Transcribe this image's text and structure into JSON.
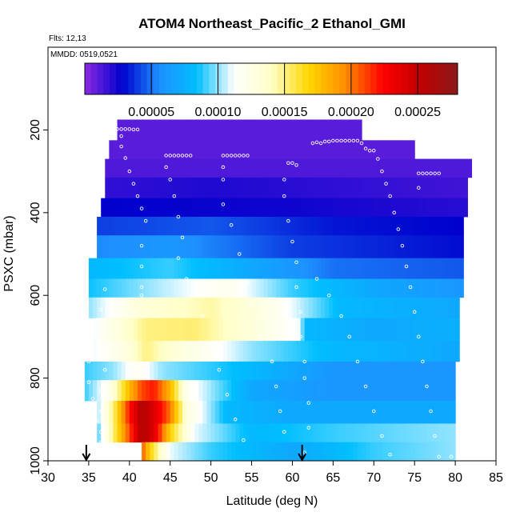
{
  "chart_data": {
    "type": "heatmap",
    "title": "ATOM4 Northeast_Pacific_2 Ethanol_GMI",
    "flights_label": "Flts: 12,13",
    "mmdd_label": "MMDD: 0519,0521",
    "xlabel": "Latitude (deg N)",
    "ylabel": "PSXC (mbar)",
    "xlim": [
      30,
      85
    ],
    "ylim": [
      1000,
      0
    ],
    "x_ticks": [
      30,
      35,
      40,
      45,
      50,
      55,
      60,
      65,
      70,
      75,
      80,
      85
    ],
    "y_ticks": [
      200,
      400,
      600,
      800,
      1000
    ],
    "colorbar": {
      "range": [
        0,
        0.00028
      ],
      "tick_values": [
        5e-05,
        0.0001,
        0.00015,
        0.0002,
        0.00025
      ],
      "tick_labels": [
        "0.00005",
        "0.00010",
        "0.00015",
        "0.00020",
        "0.00025"
      ],
      "colors": [
        "#8a2be2",
        "#0000cd",
        "#1e90ff",
        "#00bfff",
        "#ffffff",
        "#ffffc8",
        "#ffd700",
        "#ff8c00",
        "#ff0000",
        "#c00000",
        "#8b1a1a"
      ]
    },
    "arrows_latitude": [
      34.7,
      61.2
    ],
    "rows": [
      {
        "p_top": 175,
        "p_bot": 225,
        "x0": 38.5,
        "x1": 68.5,
        "stops": [
          [
            38.5,
            1e-05
          ],
          [
            68.5,
            1e-05
          ]
        ]
      },
      {
        "p_top": 225,
        "p_bot": 270,
        "x0": 37.5,
        "x1": 75,
        "stops": [
          [
            37.5,
            1e-05
          ],
          [
            75,
            1e-05
          ]
        ]
      },
      {
        "p_top": 270,
        "p_bot": 315,
        "x0": 37,
        "x1": 82,
        "stops": [
          [
            37,
            1.2e-05
          ],
          [
            82,
            1.2e-05
          ]
        ]
      },
      {
        "p_top": 315,
        "p_bot": 365,
        "x0": 37,
        "x1": 81.5,
        "stops": [
          [
            37,
            1.8e-05
          ],
          [
            50,
            2.2e-05
          ],
          [
            81.5,
            1.5e-05
          ]
        ]
      },
      {
        "p_top": 365,
        "p_bot": 410,
        "x0": 36.5,
        "x1": 81.5,
        "stops": [
          [
            36.5,
            2.8e-05
          ],
          [
            60,
            2.5e-05
          ],
          [
            81.5,
            2e-05
          ]
        ]
      },
      {
        "p_top": 410,
        "p_bot": 455,
        "x0": 36,
        "x1": 81,
        "stops": [
          [
            36,
            4e-05
          ],
          [
            50,
            4.5e-05
          ],
          [
            65,
            3.2e-05
          ],
          [
            81,
            2.8e-05
          ]
        ]
      },
      {
        "p_top": 455,
        "p_bot": 510,
        "x0": 36,
        "x1": 81,
        "stops": [
          [
            36,
            5.5e-05
          ],
          [
            45,
            6e-05
          ],
          [
            60,
            4e-05
          ],
          [
            81,
            3e-05
          ]
        ]
      },
      {
        "p_top": 510,
        "p_bot": 560,
        "x0": 35,
        "x1": 81,
        "stops": [
          [
            35,
            8e-05
          ],
          [
            45,
            9e-05
          ],
          [
            55,
            7e-05
          ],
          [
            65,
            5e-05
          ],
          [
            81,
            4.5e-05
          ]
        ]
      },
      {
        "p_top": 560,
        "p_bot": 605,
        "x0": 35,
        "x1": 81,
        "stops": [
          [
            35,
            8.5e-05
          ],
          [
            42,
            0.0001
          ],
          [
            52,
            0.00012
          ],
          [
            60,
            9e-05
          ],
          [
            70,
            7e-05
          ],
          [
            81,
            6e-05
          ]
        ]
      },
      {
        "p_top": 605,
        "p_bot": 655,
        "x0": 35,
        "x1": 80.5,
        "stops": [
          [
            35,
            0.0001
          ],
          [
            41,
            0.00013
          ],
          [
            50,
            0.000145
          ],
          [
            58,
            0.00012
          ],
          [
            66,
            8e-05
          ],
          [
            80.5,
            7e-05
          ]
        ]
      },
      {
        "p_top": 655,
        "p_bot": 710,
        "x0": 35.5,
        "x1": 80.5,
        "stops": [
          [
            35.5,
            0.00011
          ],
          [
            42,
            0.00015
          ],
          [
            48,
            0.000152
          ],
          [
            55,
            0.00013
          ],
          [
            61,
            0.00011
          ],
          [
            61.5,
            8e-05
          ],
          [
            70,
            7e-05
          ],
          [
            80.5,
            7.5e-05
          ]
        ]
      },
      {
        "p_top": 710,
        "p_bot": 760,
        "x0": 35.5,
        "x1": 80.5,
        "stops": [
          [
            35.5,
            0.00011
          ],
          [
            40,
            0.00013
          ],
          [
            42,
            0.00015
          ],
          [
            46,
            0.00013
          ],
          [
            55,
            0.0001
          ],
          [
            65,
            8e-05
          ],
          [
            80.5,
            7e-05
          ]
        ]
      },
      {
        "p_top": 760,
        "p_bot": 805,
        "x0": 34.5,
        "x1": 80,
        "stops": [
          [
            34.5,
            9e-05
          ],
          [
            38,
            0.0001
          ],
          [
            41,
            0.00012
          ],
          [
            44,
            0.0001
          ],
          [
            55,
            8e-05
          ],
          [
            65,
            6e-05
          ],
          [
            80,
            6e-05
          ]
        ]
      },
      {
        "p_top": 805,
        "p_bot": 855,
        "x0": 34.5,
        "x1": 80,
        "stops": [
          [
            34.5,
            9e-05
          ],
          [
            37.5,
            0.00012
          ],
          [
            40,
            0.00018
          ],
          [
            41.5,
            0.00021
          ],
          [
            43,
            0.00022
          ],
          [
            45,
            0.00018
          ],
          [
            47,
            0.00012
          ],
          [
            55,
            7e-05
          ],
          [
            65,
            6e-05
          ],
          [
            80,
            6e-05
          ]
        ]
      },
      {
        "p_top": 855,
        "p_bot": 910,
        "x0": 36,
        "x1": 80,
        "stops": [
          [
            36,
            0.0001
          ],
          [
            38,
            0.00015
          ],
          [
            40,
            0.00022
          ],
          [
            41.5,
            0.00026
          ],
          [
            43,
            0.00024
          ],
          [
            45,
            0.0002
          ],
          [
            47,
            0.00013
          ],
          [
            52,
            8e-05
          ],
          [
            60,
            7e-05
          ],
          [
            80,
            7e-05
          ]
        ]
      },
      {
        "p_top": 910,
        "p_bot": 955,
        "x0": 36,
        "x1": 80,
        "stops": [
          [
            36,
            9e-05
          ],
          [
            38,
            0.00015
          ],
          [
            40,
            0.00021
          ],
          [
            41.5,
            0.00026
          ],
          [
            43,
            0.00024
          ],
          [
            45,
            0.00017
          ],
          [
            48,
            0.00011
          ],
          [
            55,
            8e-05
          ],
          [
            65,
            9e-05
          ],
          [
            80,
            0.0001
          ]
        ]
      },
      {
        "p_top": 955,
        "p_bot": 1000,
        "x0": 41.5,
        "x1": 80,
        "stops": [
          [
            41.5,
            0.00021
          ],
          [
            42.5,
            0.00017
          ],
          [
            45,
            0.00011
          ],
          [
            50,
            9e-05
          ],
          [
            60,
            7e-05
          ],
          [
            70,
            9e-05
          ],
          [
            80,
            0.0001
          ]
        ]
      }
    ],
    "points": [
      [
        38.5,
        198
      ],
      [
        39,
        198
      ],
      [
        39.5,
        198
      ],
      [
        40,
        198
      ],
      [
        40.5,
        199
      ],
      [
        41,
        199
      ],
      [
        39,
        215
      ],
      [
        39,
        240
      ],
      [
        39.5,
        268
      ],
      [
        40,
        300
      ],
      [
        40.5,
        330
      ],
      [
        41,
        360
      ],
      [
        41.5,
        390
      ],
      [
        42,
        420
      ],
      [
        41.5,
        480
      ],
      [
        41.5,
        530
      ],
      [
        41.5,
        580
      ],
      [
        41.5,
        600
      ],
      [
        40.5,
        640
      ],
      [
        38.5,
        680
      ],
      [
        37.5,
        730
      ],
      [
        37,
        780
      ],
      [
        36.5,
        830
      ],
      [
        36.5,
        880
      ],
      [
        36.5,
        930
      ],
      [
        36.5,
        955
      ],
      [
        44.5,
        262
      ],
      [
        45,
        262
      ],
      [
        45.5,
        262
      ],
      [
        46,
        262
      ],
      [
        46.5,
        262
      ],
      [
        47,
        262
      ],
      [
        47.5,
        262
      ],
      [
        44.5,
        290
      ],
      [
        45,
        320
      ],
      [
        45.5,
        360
      ],
      [
        46,
        410
      ],
      [
        46.5,
        460
      ],
      [
        46,
        510
      ],
      [
        47,
        560
      ],
      [
        51.5,
        262
      ],
      [
        52,
        262
      ],
      [
        52.5,
        262
      ],
      [
        53,
        262
      ],
      [
        53.5,
        262
      ],
      [
        54,
        262
      ],
      [
        54.5,
        262
      ],
      [
        51.5,
        290
      ],
      [
        51.5,
        320
      ],
      [
        51.5,
        380
      ],
      [
        52.5,
        430
      ],
      [
        53.5,
        500
      ],
      [
        54.5,
        570
      ],
      [
        55,
        620
      ],
      [
        56,
        700
      ],
      [
        57.5,
        760
      ],
      [
        58,
        820
      ],
      [
        58.5,
        880
      ],
      [
        59,
        930
      ],
      [
        59.5,
        280
      ],
      [
        60,
        280
      ],
      [
        60.5,
        285
      ],
      [
        59,
        320
      ],
      [
        59,
        360
      ],
      [
        59.5,
        420
      ],
      [
        60,
        470
      ],
      [
        60.5,
        520
      ],
      [
        60.5,
        580
      ],
      [
        61,
        640
      ],
      [
        61,
        700
      ],
      [
        61.5,
        760
      ],
      [
        61.5,
        800
      ],
      [
        62,
        860
      ],
      [
        62,
        920
      ],
      [
        61.5,
        980
      ],
      [
        62.5,
        232
      ],
      [
        63,
        230
      ],
      [
        63.5,
        232
      ],
      [
        64,
        228
      ],
      [
        64.5,
        228
      ],
      [
        65,
        226
      ],
      [
        65.5,
        226
      ],
      [
        66,
        226
      ],
      [
        66.5,
        226
      ],
      [
        67,
        226
      ],
      [
        67.5,
        226
      ],
      [
        68,
        226
      ],
      [
        68.5,
        232
      ],
      [
        69,
        245
      ],
      [
        69.5,
        250
      ],
      [
        70,
        250
      ],
      [
        70.5,
        270
      ],
      [
        71,
        300
      ],
      [
        71.5,
        330
      ],
      [
        72,
        360
      ],
      [
        72.5,
        400
      ],
      [
        73,
        440
      ],
      [
        73.5,
        480
      ],
      [
        74,
        530
      ],
      [
        74.5,
        580
      ],
      [
        75,
        640
      ],
      [
        75.5,
        700
      ],
      [
        76,
        760
      ],
      [
        76.5,
        820
      ],
      [
        77,
        880
      ],
      [
        77.5,
        940
      ],
      [
        78,
        990
      ],
      [
        79.5,
        990
      ],
      [
        75.5,
        305
      ],
      [
        76,
        305
      ],
      [
        76.5,
        305
      ],
      [
        77,
        305
      ],
      [
        77.5,
        305
      ],
      [
        78,
        305
      ],
      [
        75.5,
        340
      ],
      [
        37,
        585
      ],
      [
        36.5,
        635
      ],
      [
        35.5,
        690
      ],
      [
        35,
        760
      ],
      [
        35,
        810
      ],
      [
        35.5,
        850
      ],
      [
        36,
        905
      ],
      [
        35.5,
        960
      ],
      [
        63,
        560
      ],
      [
        64.5,
        600
      ],
      [
        66,
        650
      ],
      [
        67,
        700
      ],
      [
        68,
        760
      ],
      [
        69,
        820
      ],
      [
        70,
        880
      ],
      [
        71,
        940
      ],
      [
        72,
        985
      ],
      [
        48,
        600
      ],
      [
        49,
        650
      ],
      [
        50,
        720
      ],
      [
        51,
        780
      ],
      [
        52,
        840
      ],
      [
        53,
        900
      ],
      [
        54,
        950
      ]
    ]
  }
}
